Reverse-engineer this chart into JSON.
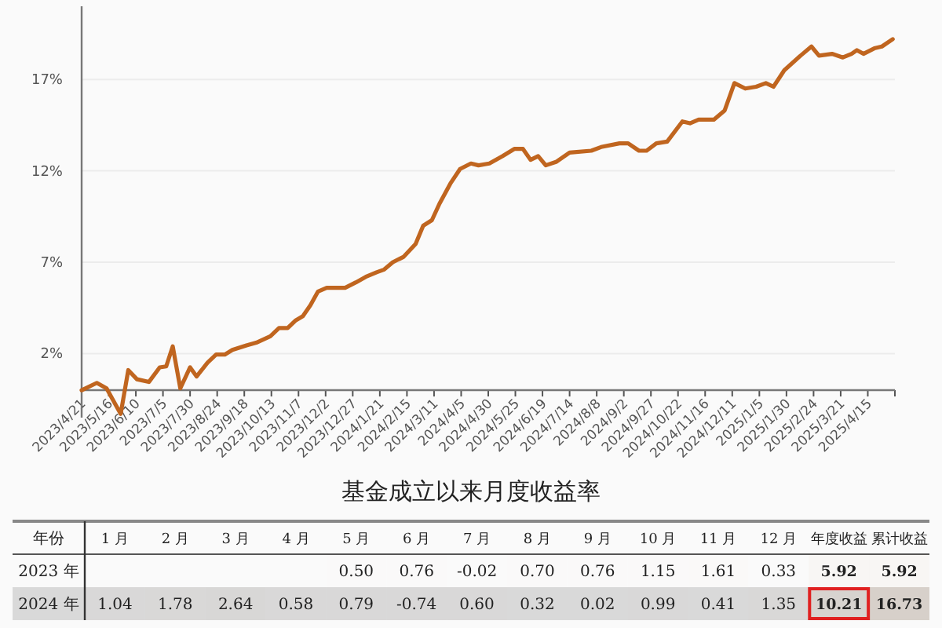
{
  "chart_data": [
    {
      "type": "line",
      "x": [
        "2023-04-21",
        "2023-05-05",
        "2023-05-14",
        "2023-05-27",
        "2023-06-03",
        "2023-06-11",
        "2023-06-22",
        "2023-07-02",
        "2023-07-08",
        "2023-07-14",
        "2023-07-21",
        "2023-07-30",
        "2023-08-05",
        "2023-08-15",
        "2023-08-23",
        "2023-08-31",
        "2023-09-07",
        "2023-09-20",
        "2023-09-29",
        "2023-10-12",
        "2023-10-20",
        "2023-10-28",
        "2023-11-04",
        "2023-11-11",
        "2023-11-18",
        "2023-11-25",
        "2023-12-03",
        "2023-12-20",
        "2023-12-30",
        "2024-01-08",
        "2024-01-18",
        "2024-01-25",
        "2024-02-02",
        "2024-02-12",
        "2024-02-23",
        "2024-03-01",
        "2024-03-09",
        "2024-03-16",
        "2024-03-26",
        "2024-04-04",
        "2024-04-14",
        "2024-04-21",
        "2024-05-01",
        "2024-05-13",
        "2024-05-24",
        "2024-06-01",
        "2024-06-08",
        "2024-06-15",
        "2024-06-22",
        "2024-07-02",
        "2024-07-14",
        "2024-08-03",
        "2024-08-12",
        "2024-08-29",
        "2024-09-06",
        "2024-09-16",
        "2024-09-23",
        "2024-10-02",
        "2024-10-12",
        "2024-10-26",
        "2024-11-02",
        "2024-11-10",
        "2024-11-24",
        "2024-12-04",
        "2024-12-13",
        "2024-12-23",
        "2025-01-02",
        "2025-01-11",
        "2025-01-18",
        "2025-01-28",
        "2025-02-12",
        "2025-02-22",
        "2025-03-01",
        "2025-03-13",
        "2025-03-23",
        "2025-03-31",
        "2025-04-05",
        "2025-04-11",
        "2025-04-21",
        "2025-04-28",
        "2025-05-08"
      ],
      "series": [
        {
          "color": "#c0651f",
          "values": [
            0,
            0.4,
            0.1,
            -1.3,
            1.1,
            0.6,
            0.45,
            1.25,
            1.3,
            2.4,
            0.1,
            1.25,
            0.75,
            1.5,
            1.95,
            1.95,
            2.2,
            2.45,
            2.6,
            2.95,
            3.4,
            3.4,
            3.8,
            4.05,
            4.65,
            5.4,
            5.6,
            5.6,
            5.9,
            6.2,
            6.45,
            6.6,
            7.0,
            7.3,
            8.0,
            9.0,
            9.3,
            10.2,
            11.3,
            12.1,
            12.4,
            12.3,
            12.4,
            12.8,
            13.2,
            13.2,
            12.6,
            12.8,
            12.3,
            12.5,
            13.0,
            13.1,
            13.3,
            13.5,
            13.5,
            13.1,
            13.1,
            13.5,
            13.6,
            14.7,
            14.6,
            14.8,
            14.8,
            15.3,
            16.8,
            16.5,
            16.6,
            16.8,
            16.6,
            17.5,
            18.3,
            18.8,
            18.3,
            18.4,
            18.2,
            18.4,
            18.6,
            18.4,
            18.7,
            18.8,
            19.2
          ]
        }
      ],
      "xlim": [
        "2023-04-21",
        "2025-05-10"
      ],
      "xticks": [
        {
          "value": "2023-04-21",
          "label": "2023/4/21"
        },
        {
          "value": "2023-05-16",
          "label": "2023/5/16"
        },
        {
          "value": "2023-06-10",
          "label": "2023/6/10"
        },
        {
          "value": "2023-07-05",
          "label": "2023/7/5"
        },
        {
          "value": "2023-07-30",
          "label": "2023/7/30"
        },
        {
          "value": "2023-08-24",
          "label": "2023/8/24"
        },
        {
          "value": "2023-09-18",
          "label": "2023/9/18"
        },
        {
          "value": "2023-10-13",
          "label": "2023/10/13"
        },
        {
          "value": "2023-11-07",
          "label": "2023/11/7"
        },
        {
          "value": "2023-12-02",
          "label": "2023/12/2"
        },
        {
          "value": "2023-12-27",
          "label": "2023/12/27"
        },
        {
          "value": "2024-01-21",
          "label": "2024/1/21"
        },
        {
          "value": "2024-02-15",
          "label": "2024/2/15"
        },
        {
          "value": "2024-03-11",
          "label": "2024/3/11"
        },
        {
          "value": "2024-04-05",
          "label": "2024/4/5"
        },
        {
          "value": "2024-04-30",
          "label": "2024/4/30"
        },
        {
          "value": "2024-05-25",
          "label": "2024/5/25"
        },
        {
          "value": "2024-06-19",
          "label": "2024/6/19"
        },
        {
          "value": "2024-07-14",
          "label": "2024/7/14"
        },
        {
          "value": "2024-08-08",
          "label": "2024/8/8"
        },
        {
          "value": "2024-09-02",
          "label": "2024/9/2"
        },
        {
          "value": "2024-09-27",
          "label": "2024/9/27"
        },
        {
          "value": "2024-10-22",
          "label": "2024/10/22"
        },
        {
          "value": "2024-11-16",
          "label": "2024/11/16"
        },
        {
          "value": "2024-12-11",
          "label": "2024/12/11"
        },
        {
          "value": "2025-01-05",
          "label": "2025/1/5"
        },
        {
          "value": "2025-01-30",
          "label": "2025/1/30"
        },
        {
          "value": "2025-02-24",
          "label": "2025/2/24"
        },
        {
          "value": "2025-03-21",
          "label": "2025/3/21"
        },
        {
          "value": "2025-04-15",
          "label": "2025/4/15"
        },
        {
          "value": "2025-05-10",
          "label": null
        }
      ],
      "ylim": [
        -1.5,
        21
      ],
      "yticks": [
        {
          "value": 2,
          "label": "2%"
        },
        {
          "value": 7,
          "label": "7%"
        },
        {
          "value": 12,
          "label": "12%"
        },
        {
          "value": 17,
          "label": "17%"
        }
      ],
      "grid": "y"
    },
    {
      "type": "heatmap",
      "title": "基金成立以来月度收益率",
      "ylabel": "年份",
      "categories": [
        "1 月",
        "2 月",
        "3 月",
        "4 月",
        "5 月",
        "6 月",
        "7 月",
        "8 月",
        "9 月",
        "10 月",
        "11 月",
        "12 月",
        "年度收益",
        "累计收益"
      ],
      "y_categories": [
        "2023 年",
        "2024 年"
      ],
      "cells": [
        [
          null,
          null,
          null,
          null,
          0.5,
          0.76,
          -0.02,
          0.7,
          0.76,
          1.15,
          1.61,
          0.33,
          5.92,
          5.92
        ],
        [
          1.04,
          1.78,
          2.64,
          0.58,
          0.79,
          -0.74,
          0.6,
          0.32,
          0.02,
          0.99,
          0.41,
          1.35,
          10.21,
          16.73
        ]
      ],
      "cell_labels": [
        [
          null,
          null,
          null,
          null,
          "0.50",
          "0.76",
          "-0.02",
          "0.70",
          "0.76",
          "1.15",
          "1.61",
          "0.33",
          "5.92",
          "5.92"
        ],
        [
          "1.04",
          "1.78",
          "2.64",
          "0.58",
          "0.79",
          "-0.74",
          "0.60",
          "0.32",
          "0.02",
          "0.99",
          "0.41",
          "1.35",
          "10.21",
          "16.73"
        ]
      ]
    }
  ]
}
